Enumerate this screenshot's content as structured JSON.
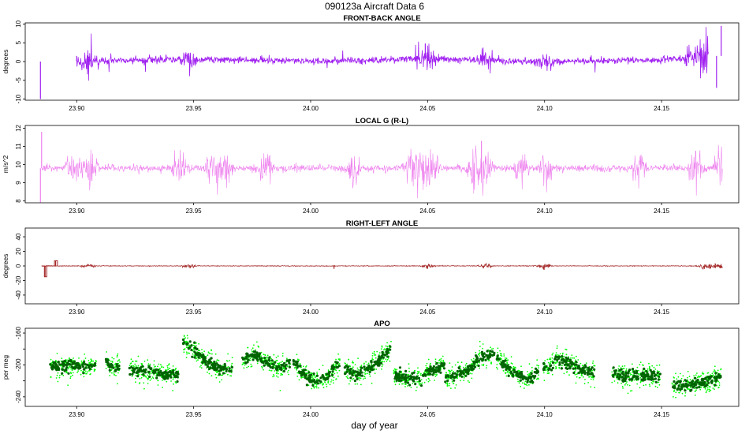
{
  "page": {
    "title": "090123a    Aircraft Data 6",
    "xlabel": "day of year"
  },
  "chart_data": [
    {
      "type": "line",
      "title": "FRONT-BACK ANGLE",
      "ylabel": "degrees",
      "xlim": [
        23.878,
        24.183
      ],
      "ylim": [
        -10.3,
        10.3
      ],
      "yticks": [
        -10,
        -5,
        0,
        5,
        10
      ],
      "xticks": [
        23.9,
        23.95,
        24.0,
        24.05,
        24.1,
        24.15
      ],
      "xtick_labels": [
        "23.90",
        "23.95",
        "24.00",
        "24.05",
        "24.10",
        "24.15"
      ],
      "color": "#a020f0",
      "series": [
        {
          "x": [
            23.9,
            23.93,
            23.96,
            23.99,
            24.0,
            24.03,
            24.05,
            24.08,
            24.1,
            24.13,
            24.15,
            24.17
          ],
          "y": [
            0,
            0.5,
            0.5,
            0.3,
            0,
            0.5,
            0.8,
            0.3,
            0,
            0.3,
            0.5,
            1.5
          ]
        }
      ],
      "events": [
        {
          "x": 23.8845,
          "y": -10
        },
        {
          "x": 23.9,
          "y": 1.5
        },
        {
          "x": 24.049,
          "y": 4.8
        },
        {
          "x": 24.1755,
          "y": 9.5
        },
        {
          "x": 24.1735,
          "y": -7
        }
      ]
    },
    {
      "type": "line",
      "title": "LOCAL G (R-L)",
      "ylabel": "m/s^2",
      "xlim": [
        23.878,
        24.183
      ],
      "ylim": [
        7.9,
        12.15
      ],
      "yticks": [
        8,
        9,
        10,
        11,
        12
      ],
      "xticks": [
        23.9,
        23.95,
        24.0,
        24.05,
        24.1,
        24.15
      ],
      "xtick_labels": [
        "23.90",
        "23.95",
        "24.00",
        "24.05",
        "24.10",
        "24.15"
      ],
      "color": "#ee82ee",
      "series": [
        {
          "x": [
            23.885,
            23.9,
            23.95,
            24.0,
            24.05,
            24.1,
            24.15,
            24.176
          ],
          "y": [
            9.8,
            9.8,
            9.8,
            9.8,
            9.8,
            9.8,
            9.8,
            9.8
          ]
        }
      ],
      "events": [
        {
          "x": 23.8845,
          "y": 7.9
        },
        {
          "x": 23.885,
          "y": 11.8
        },
        {
          "x": 24.073,
          "y": 11.3
        }
      ]
    },
    {
      "type": "line",
      "title": "RIGHT-LEFT ANGLE",
      "ylabel": "degrees",
      "xlim": [
        23.878,
        24.183
      ],
      "ylim": [
        -52,
        52
      ],
      "yticks": [
        -40,
        -20,
        0,
        20,
        40
      ],
      "xticks": [
        23.9,
        23.95,
        24.0,
        24.05,
        24.1,
        24.15
      ],
      "xtick_labels": [
        "23.90",
        "23.95",
        "24.00",
        "24.05",
        "24.10",
        "24.15"
      ],
      "color": "#a52a2a",
      "series": [
        {
          "x": [
            23.885,
            23.9,
            23.95,
            24.0,
            24.05,
            24.1,
            24.15,
            24.176
          ],
          "y": [
            0,
            0,
            0,
            0,
            0,
            0,
            0,
            0
          ]
        }
      ],
      "events": [
        {
          "x": 23.8865,
          "y": -15
        },
        {
          "x": 23.891,
          "y": 7
        },
        {
          "x": 24.01,
          "y": -4
        },
        {
          "x": 24.05,
          "y": -4
        },
        {
          "x": 24.073,
          "y": 2
        },
        {
          "x": 24.173,
          "y": -3
        }
      ]
    },
    {
      "type": "scatter",
      "title": "APO",
      "ylabel": "per meg",
      "xlim": [
        23.878,
        24.183
      ],
      "ylim": [
        -252,
        -154
      ],
      "yticks": [
        -240,
        -220,
        -200,
        -180,
        -160
      ],
      "ytick_labels": [
        "-240",
        "",
        "-200",
        "",
        "-160"
      ],
      "xticks": [
        23.9,
        23.95,
        24.0,
        24.05,
        24.1,
        24.15
      ],
      "xtick_labels": [
        "23.90",
        "23.95",
        "24.00",
        "24.05",
        "24.10",
        "24.15"
      ],
      "colors": {
        "outer": "#00ff00",
        "inner": "#006400"
      },
      "segments": [
        {
          "x0": 23.8885,
          "x1": 23.9085,
          "y": [
            -202,
            -202,
            -201,
            -203,
            -200
          ]
        },
        {
          "x0": 23.9125,
          "x1": 23.9185,
          "y": [
            -197,
            -203,
            -200
          ]
        },
        {
          "x0": 23.9225,
          "x1": 23.9435,
          "y": [
            -205,
            -209,
            -208,
            -211,
            -213
          ]
        },
        {
          "x0": 23.9455,
          "x1": 23.9665,
          "y": [
            -172,
            -183,
            -197,
            -204,
            -205
          ]
        },
        {
          "x0": 23.9705,
          "x1": 23.9915,
          "y": [
            -193,
            -187,
            -195,
            -205,
            -197
          ]
        },
        {
          "x0": 23.9925,
          "x1": 24.0125,
          "y": [
            -195,
            -212,
            -221,
            -215,
            -199
          ]
        },
        {
          "x0": 24.0145,
          "x1": 24.0345,
          "y": [
            -205,
            -212,
            -207,
            -193,
            -180
          ]
        },
        {
          "x0": 24.0355,
          "x1": 24.0575,
          "y": [
            -213,
            -217,
            -216,
            -206,
            -199
          ]
        },
        {
          "x0": 24.0575,
          "x1": 24.0785,
          "y": [
            -216,
            -213,
            -205,
            -190,
            -188
          ]
        },
        {
          "x0": 24.0795,
          "x1": 24.0975,
          "y": [
            -191,
            -202,
            -212,
            -218,
            -210
          ]
        },
        {
          "x0": 24.0995,
          "x1": 24.1215,
          "y": [
            -205,
            -193,
            -199,
            -206,
            -210
          ]
        },
        {
          "x0": 24.1285,
          "x1": 24.1495,
          "y": [
            -210,
            -214,
            -213,
            -212,
            -216
          ]
        },
        {
          "x0": 24.1545,
          "x1": 24.1755,
          "y": [
            -225,
            -226,
            -222,
            -222,
            -212
          ]
        }
      ]
    }
  ]
}
